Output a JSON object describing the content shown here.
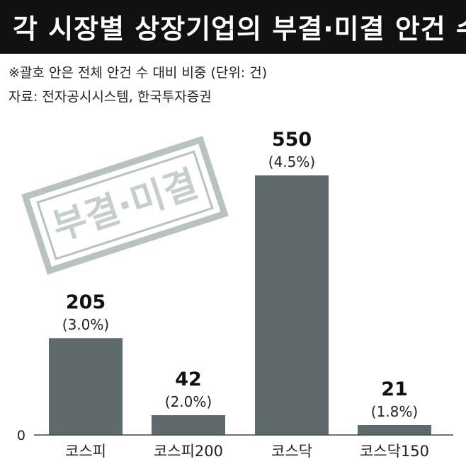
{
  "header": {
    "title": "각 시장별 상장기업의 부결·미결 안건 수"
  },
  "notes": {
    "line1": "※괄호 안은 전체 안건 수 대비 비중 (단위: 건)",
    "line2": "자료: 전자공시시스템, 한국투자증권"
  },
  "stamp": {
    "text": "부결·미결"
  },
  "colors": {
    "bar": "#5f6a6c",
    "title_bg": "#111111",
    "stamp": "#b9c1c3"
  },
  "chart_data": {
    "type": "bar",
    "title": "각 시장별 상장기업의 부결·미결 안건 수",
    "categories": [
      "코스피",
      "코스피200",
      "코스닥",
      "코스닥150"
    ],
    "values": [
      205,
      42,
      550,
      21
    ],
    "shares": [
      "(3.0%)",
      "(2.0%)",
      "(4.5%)",
      "(1.8%)"
    ],
    "value_labels": [
      "205",
      "42",
      "550",
      "21"
    ],
    "ylim": [
      0,
      600
    ],
    "yticks": [
      "0"
    ],
    "grid": false
  }
}
